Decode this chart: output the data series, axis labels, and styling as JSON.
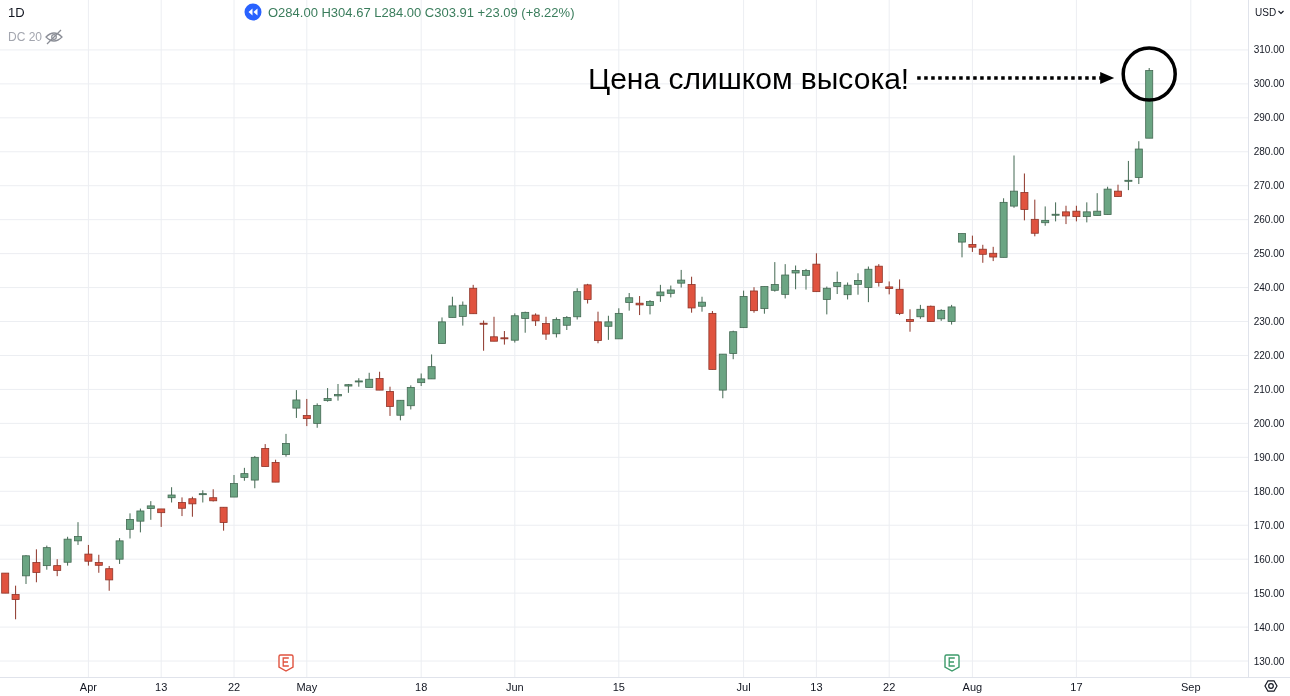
{
  "chart_data": {
    "type": "candlestick",
    "title": "1D",
    "subtitle": "O284.00 H304.67 L284.00 C303.91 +23.09 (+8.22%)",
    "ylabel": "USD",
    "annotations": [
      "DC 20",
      "Цена слишком высока!"
    ],
    "categories": [
      null,
      null,
      null,
      null,
      null,
      null,
      null,
      null,
      "Apr",
      null,
      null,
      null,
      null,
      null,
      null,
      "13",
      null,
      null,
      null,
      null,
      null,
      null,
      "22",
      null,
      null,
      null,
      null,
      null,
      null,
      "May",
      null,
      null,
      null,
      null,
      null,
      null,
      null,
      null,
      null,
      null,
      "18",
      null,
      null,
      null,
      null,
      null,
      null,
      null,
      null,
      "Jun",
      null,
      null,
      null,
      null,
      null,
      null,
      null,
      null,
      null,
      "15",
      null,
      null,
      null,
      null,
      null,
      null,
      null,
      null,
      null,
      null,
      null,
      "Jul",
      null,
      null,
      null,
      null,
      null,
      null,
      "13",
      null,
      null,
      null,
      null,
      null,
      null,
      "22",
      null,
      null,
      null,
      null,
      null,
      null,
      null,
      "Aug",
      null,
      null,
      null,
      null,
      null,
      null,
      null,
      null,
      null,
      "17",
      null,
      null,
      null,
      null,
      null,
      null,
      null,
      null,
      null,
      null,
      "Sep",
      null,
      null,
      null,
      null,
      null
    ],
    "ohlc": [
      [
        155.9,
        155.9,
        150.0,
        150.0
      ],
      [
        149.6,
        152.2,
        142.3,
        148.1
      ],
      [
        155.1,
        161.2,
        152.7,
        161.0
      ],
      [
        159.0,
        162.9,
        153.2,
        156.1
      ],
      [
        158.1,
        164.0,
        156.9,
        163.4
      ],
      [
        158.1,
        160.0,
        155.0,
        156.7
      ],
      [
        159.1,
        166.6,
        158.1,
        165.9
      ],
      [
        165.4,
        170.9,
        164.2,
        166.7
      ],
      [
        161.5,
        164.2,
        158.1,
        159.4
      ],
      [
        159.0,
        161.3,
        156.0,
        158.2
      ],
      [
        157.2,
        158.0,
        150.7,
        153.9
      ],
      [
        160.0,
        166.2,
        158.6,
        165.4
      ],
      [
        168.8,
        173.5,
        166.1,
        171.7
      ],
      [
        171.2,
        174.9,
        167.9,
        174.2
      ],
      [
        174.9,
        177.1,
        171.6,
        175.7
      ],
      [
        174.8,
        174.8,
        169.5,
        173.7
      ],
      [
        178.1,
        181.2,
        176.7,
        178.9
      ],
      [
        176.7,
        178.2,
        172.7,
        175.0
      ],
      [
        177.8,
        178.4,
        172.5,
        176.3
      ],
      [
        179.1,
        180.3,
        176.7,
        179.3
      ],
      [
        178.1,
        180.6,
        177.0,
        177.2
      ],
      [
        175.3,
        175.3,
        168.4,
        170.8
      ],
      [
        178.3,
        184.8,
        178.3,
        182.3
      ],
      [
        184.1,
        186.9,
        183.1,
        185.2
      ],
      [
        183.3,
        190.4,
        180.9,
        190.0
      ],
      [
        192.6,
        193.9,
        187.3,
        187.3
      ],
      [
        188.5,
        189.3,
        182.7,
        182.7
      ],
      [
        190.8,
        196.9,
        190.2,
        194.1
      ],
      [
        204.5,
        209.8,
        201.6,
        206.9
      ],
      [
        202.3,
        207.2,
        199.2,
        201.4
      ],
      [
        200.0,
        205.9,
        198.7,
        205.3
      ],
      [
        206.7,
        210.4,
        206.4,
        207.3
      ],
      [
        208.1,
        211.6,
        206.7,
        208.5
      ],
      [
        211.0,
        211.6,
        209.0,
        211.4
      ],
      [
        212.2,
        213.3,
        210.8,
        212.5
      ],
      [
        210.6,
        214.9,
        210.6,
        213.0
      ],
      [
        213.2,
        215.2,
        209.8,
        209.8
      ],
      [
        209.4,
        210.8,
        202.2,
        205.0
      ],
      [
        202.4,
        206.8,
        200.9,
        206.8
      ],
      [
        205.2,
        211.2,
        204.1,
        210.6
      ],
      [
        212.0,
        214.7,
        211.0,
        213.1
      ],
      [
        213.1,
        220.3,
        213.1,
        216.7
      ],
      [
        223.5,
        231.2,
        223.5,
        229.9
      ],
      [
        231.2,
        237.3,
        231.2,
        234.6
      ],
      [
        231.5,
        235.9,
        228.8,
        234.8
      ],
      [
        239.8,
        240.8,
        232.3,
        232.3
      ],
      [
        229.5,
        230.3,
        221.4,
        229.2
      ],
      [
        225.5,
        231.4,
        224.2,
        224.2
      ],
      [
        225.2,
        227.2,
        223.2,
        224.9
      ],
      [
        224.5,
        232.4,
        223.8,
        231.7
      ],
      [
        230.9,
        232.9,
        226.7,
        232.7
      ],
      [
        231.9,
        232.4,
        228.7,
        230.2
      ],
      [
        229.4,
        231.4,
        224.6,
        226.3
      ],
      [
        226.4,
        231.2,
        225.3,
        230.6
      ],
      [
        228.9,
        231.6,
        227.5,
        231.2
      ],
      [
        231.4,
        239.8,
        230.6,
        238.8
      ],
      [
        240.8,
        241.1,
        235.3,
        236.5
      ],
      [
        229.9,
        232.9,
        223.6,
        224.4
      ],
      [
        228.6,
        231.7,
        224.6,
        229.9
      ],
      [
        224.9,
        233.9,
        224.9,
        232.4
      ],
      [
        235.6,
        238.4,
        233.2,
        237.0
      ],
      [
        235.4,
        237.5,
        231.9,
        234.9
      ],
      [
        234.7,
        236.3,
        232.1,
        235.9
      ],
      [
        237.6,
        240.8,
        235.8,
        238.7
      ],
      [
        238.3,
        240.6,
        237.1,
        239.3
      ],
      [
        241.3,
        245.2,
        240.0,
        242.2
      ],
      [
        240.9,
        243.2,
        232.6,
        234.0
      ],
      [
        234.5,
        237.3,
        232.9,
        235.7
      ],
      [
        232.4,
        233.1,
        215.9,
        215.9
      ],
      [
        209.8,
        220.4,
        207.4,
        220.4
      ],
      [
        220.6,
        227.3,
        218.9,
        227.0
      ],
      [
        228.2,
        239.1,
        228.2,
        237.4
      ],
      [
        239.0,
        240.1,
        232.6,
        233.2
      ],
      [
        233.8,
        240.3,
        232.3,
        240.3
      ],
      [
        239.2,
        247.5,
        238.8,
        240.9
      ],
      [
        238.0,
        246.9,
        236.8,
        243.7
      ],
      [
        244.3,
        246.5,
        239.5,
        245.0
      ],
      [
        243.6,
        245.5,
        239.4,
        245.0
      ],
      [
        246.9,
        250.1,
        238.8,
        238.8
      ],
      [
        236.5,
        240.3,
        232.1,
        239.8
      ],
      [
        240.3,
        244.7,
        238.1,
        241.5
      ],
      [
        237.9,
        241.5,
        236.5,
        240.7
      ],
      [
        240.9,
        244.2,
        237.9,
        242.1
      ],
      [
        240.0,
        246.2,
        235.7,
        245.4
      ],
      [
        246.3,
        246.9,
        240.3,
        241.5
      ],
      [
        240.2,
        241.8,
        238.0,
        239.7
      ],
      [
        239.5,
        242.4,
        231.9,
        232.4
      ],
      [
        230.6,
        233.6,
        227.0,
        230.0
      ],
      [
        231.4,
        234.9,
        230.8,
        233.6
      ],
      [
        234.5,
        234.7,
        230.0,
        230.0
      ],
      [
        230.8,
        233.6,
        230.2,
        233.3
      ],
      [
        230.0,
        234.9,
        229.1,
        234.3
      ],
      [
        253.4,
        255.9,
        248.9,
        255.9
      ],
      [
        252.7,
        255.3,
        250.5,
        251.9
      ],
      [
        251.3,
        252.6,
        247.3,
        249.8
      ],
      [
        250.1,
        252.0,
        247.8,
        249.0
      ],
      [
        248.9,
        266.3,
        248.9,
        265.1
      ],
      [
        264.0,
        278.9,
        263.5,
        268.4
      ],
      [
        268.0,
        273.6,
        259.8,
        263.0
      ],
      [
        260.1,
        265.9,
        255.1,
        256.0
      ],
      [
        259.1,
        263.9,
        258.2,
        259.8
      ],
      [
        261.3,
        265.1,
        259.5,
        261.6
      ],
      [
        262.3,
        264.1,
        258.7,
        261.1
      ],
      [
        262.5,
        264.1,
        259.5,
        260.9
      ],
      [
        260.9,
        265.1,
        259.2,
        262.3
      ],
      [
        261.2,
        267.8,
        261.2,
        262.5
      ],
      [
        261.5,
        269.7,
        261.5,
        269.0
      ],
      [
        268.4,
        270.3,
        266.8,
        266.8
      ],
      [
        271.3,
        277.3,
        268.7,
        271.6
      ],
      [
        272.4,
        283.1,
        270.5,
        280.8
      ],
      [
        284.0,
        304.67,
        284.0,
        303.91
      ],
      null,
      null,
      null,
      null,
      null,
      null,
      null,
      null,
      null
    ],
    "colors": [
      "#e0533f",
      "#e0533f",
      "#6ba583",
      "#e0533f",
      "#6ba583",
      "#e0533f",
      "#6ba583",
      "#6ba583",
      "#e0533f",
      "#e0533f",
      "#e0533f",
      "#6ba583",
      "#6ba583",
      "#6ba583",
      "#6ba583",
      "#e0533f",
      "#6ba583",
      "#e0533f",
      "#e0533f",
      "#6ba583",
      "#e0533f",
      "#e0533f",
      "#6ba583",
      "#6ba583",
      "#6ba583",
      "#e0533f",
      "#e0533f",
      "#6ba583",
      "#6ba583",
      "#e0533f",
      "#6ba583",
      "#6ba583",
      "#6ba583",
      "#6ba583",
      "#6ba583",
      "#6ba583",
      "#e0533f",
      "#e0533f",
      "#6ba583",
      "#6ba583",
      "#6ba583",
      "#6ba583",
      "#6ba583",
      "#6ba583",
      "#6ba583",
      "#e0533f",
      "#e0533f",
      "#e0533f",
      "#e0533f",
      "#6ba583",
      "#6ba583",
      "#e0533f",
      "#e0533f",
      "#6ba583",
      "#6ba583",
      "#6ba583",
      "#e0533f",
      "#e0533f",
      "#6ba583",
      "#6ba583",
      "#6ba583",
      "#e0533f",
      "#6ba583",
      "#6ba583",
      "#6ba583",
      "#6ba583",
      "#e0533f",
      "#6ba583",
      "#e0533f",
      "#6ba583",
      "#6ba583",
      "#6ba583",
      "#e0533f",
      "#6ba583",
      "#6ba583",
      "#6ba583",
      "#6ba583",
      "#6ba583",
      "#e0533f",
      "#6ba583",
      "#6ba583",
      "#6ba583",
      "#6ba583",
      "#6ba583",
      "#e0533f",
      "#e0533f",
      "#e0533f",
      "#e0533f",
      "#6ba583",
      "#e0533f",
      "#6ba583",
      "#6ba583",
      "#6ba583",
      "#e0533f",
      "#e0533f",
      "#e0533f",
      "#6ba583",
      "#6ba583",
      "#e0533f",
      "#e0533f",
      "#6ba583",
      "#6ba583",
      "#e0533f",
      "#e0533f",
      "#6ba583",
      "#6ba583",
      "#6ba583",
      "#e0533f",
      "#6ba583",
      "#6ba583",
      "#6ba583",
      null,
      null,
      null,
      null,
      null,
      null,
      null,
      null,
      null
    ],
    "ylim": [
      125.3,
      324.7
    ],
    "yticks": [
      {
        "value": 130,
        "label": "130.00"
      },
      {
        "value": 140,
        "label": "140.00"
      },
      {
        "value": 150,
        "label": "150.00"
      },
      {
        "value": 160,
        "label": "160.00"
      },
      {
        "value": 170,
        "label": "170.00"
      },
      {
        "value": 180,
        "label": "180.00"
      },
      {
        "value": 190,
        "label": "190.00"
      },
      {
        "value": 200,
        "label": "200.00"
      },
      {
        "value": 210,
        "label": "210.00"
      },
      {
        "value": 220,
        "label": "220.00"
      },
      {
        "value": 230,
        "label": "230.00"
      },
      {
        "value": 240,
        "label": "240.00"
      },
      {
        "value": 250,
        "label": "250.00"
      },
      {
        "value": 260,
        "label": "260.00"
      },
      {
        "value": 270,
        "label": "270.00"
      },
      {
        "value": 280,
        "label": "280.00"
      },
      {
        "value": 290,
        "label": "290.00"
      },
      {
        "value": 300,
        "label": "300.00"
      },
      {
        "value": 310,
        "label": "310.00"
      }
    ],
    "grid": true
  }
}
